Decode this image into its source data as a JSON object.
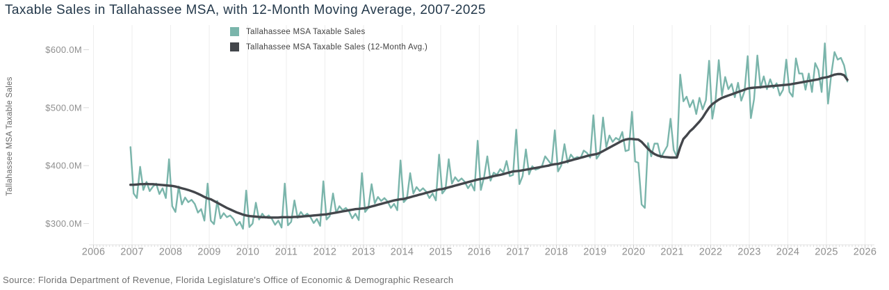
{
  "title": "Taxable Sales in Tallahassee MSA, with 12-Month Moving Average, 2007-2025",
  "source": "Source: Florida Department of Revenue, Florida Legislature's Office of Economic & Demographic Research",
  "colors": {
    "sales": "#7ab5ab",
    "avg": "#43464b",
    "grid": "#eeeeee",
    "axis_line": "#e3e3e3",
    "tick_minor": "#dcdcdc",
    "tick_major": "#c9c9c9",
    "axis_text": "#8e8e8e",
    "title_text": "#24394b"
  },
  "legend": [
    {
      "label": "Tallahassee MSA Taxable Sales",
      "color_key": "sales"
    },
    {
      "label": "Tallahassee MSA Taxable Sales (12-Month Avg.)",
      "color_key": "avg"
    }
  ],
  "y_axis": {
    "title": "Tallahassee MSA Taxable Sales",
    "ticks": [
      {
        "label": "$600.0M",
        "value": 600
      },
      {
        "label": "$500.0M",
        "value": 500
      },
      {
        "label": "$400.0M",
        "value": 400
      },
      {
        "label": "$300.0M",
        "value": 300
      }
    ]
  },
  "x_axis": {
    "years": [
      2006,
      2007,
      2008,
      2009,
      2010,
      2011,
      2012,
      2013,
      2014,
      2015,
      2016,
      2017,
      2018,
      2019,
      2020,
      2021,
      2022,
      2023,
      2024,
      2025,
      2026
    ]
  },
  "chart_data": {
    "type": "line",
    "title": "Taxable Sales in Tallahassee MSA, with 12-Month Moving Average, 2007-2025",
    "xlabel": "",
    "ylabel": "Tallahassee MSA Taxable Sales",
    "y_unit": "USD millions",
    "x_range": [
      2006,
      2026
    ],
    "y_ticks": [
      300,
      400,
      500,
      600
    ],
    "ylim": [
      262,
      642
    ],
    "grid": "vertical-only",
    "legend_position": "top-center",
    "frequency": "monthly",
    "series": [
      {
        "name": "Tallahassee MSA Taxable Sales",
        "color_key": "sales",
        "start_year": 2006,
        "start_month": 12,
        "values": [
          432,
          352,
          344,
          398,
          358,
          372,
          356,
          364,
          369,
          351,
          361,
          344,
          411,
          330,
          320,
          364,
          333,
          345,
          337,
          341,
          334,
          319,
          325,
          305,
          369,
          305,
          299,
          339,
          309,
          318,
          311,
          314,
          308,
          297,
          303,
          291,
          357,
          294,
          300,
          336,
          307,
          317,
          310,
          314,
          308,
          298,
          305,
          293,
          369,
          297,
          303,
          340,
          310,
          320,
          313,
          317,
          311,
          301,
          308,
          296,
          373,
          307,
          313,
          352,
          319,
          330,
          323,
          327,
          321,
          309,
          317,
          306,
          387,
          320,
          327,
          368,
          335,
          346,
          339,
          344,
          338,
          327,
          334,
          323,
          409,
          337,
          343,
          387,
          352,
          363,
          356,
          361,
          355,
          344,
          352,
          340,
          419,
          352,
          359,
          411,
          369,
          380,
          373,
          378,
          372,
          361,
          369,
          357,
          443,
          358,
          380,
          416,
          374,
          388,
          384,
          394,
          388,
          408,
          382,
          384,
          462,
          368,
          382,
          428,
          385,
          399,
          393,
          395,
          399,
          416,
          409,
          401,
          461,
          390,
          400,
          437,
          405,
          419,
          412,
          415,
          413,
          426,
          422,
          414,
          487,
          412,
          420,
          483,
          432,
          452,
          441,
          448,
          444,
          458,
          425,
          427,
          493,
          407,
          405,
          333,
          327,
          439,
          416,
          438,
          438,
          414,
          424,
          434,
          481,
          427,
          415,
          557,
          511,
          519,
          501,
          513,
          489,
          517,
          497,
          513,
          581,
          481,
          512,
          582,
          521,
          553,
          532,
          541,
          518,
          543,
          512,
          528,
          589,
          482,
          515,
          590,
          534,
          554,
          532,
          549,
          534,
          542,
          521,
          531,
          583,
          527,
          519,
          585,
          559,
          559,
          531,
          559,
          527,
          577,
          565,
          527,
          611,
          507,
          557,
          596,
          583,
          586,
          573,
          545
        ]
      },
      {
        "name": "Tallahassee MSA Taxable Sales (12-Month Avg.)",
        "color_key": "avg",
        "start_year": 2006,
        "start_month": 12,
        "values": [
          367,
          367,
          367.5,
          368,
          368,
          368.5,
          368,
          368,
          367.5,
          367,
          366.5,
          366,
          365.5,
          365,
          364,
          362.5,
          361,
          359.5,
          358,
          356,
          354,
          351.5,
          349,
          346,
          343.5,
          342,
          339,
          336,
          333,
          330,
          327,
          324.5,
          322,
          319.5,
          317.5,
          315.5,
          314,
          313,
          312.5,
          312,
          311.5,
          311,
          311,
          310.5,
          310.5,
          310.5,
          310.5,
          311,
          311,
          311,
          311,
          311.5,
          311.5,
          312,
          312.5,
          313,
          313.5,
          314,
          314.5,
          315,
          315.5,
          316,
          317,
          318,
          319,
          320,
          321,
          322,
          323,
          324,
          325,
          325.5,
          326,
          326.5,
          328,
          329.5,
          331,
          332.5,
          334,
          335.5,
          337,
          338.5,
          340,
          341,
          342,
          342.5,
          344,
          345.5,
          347,
          348.5,
          350,
          351.5,
          353,
          354.5,
          356,
          357.5,
          359,
          359.5,
          361,
          362.5,
          364,
          365.5,
          367,
          368.5,
          370,
          371.5,
          373,
          374.5,
          376,
          377,
          378,
          379,
          380.5,
          382,
          383,
          384,
          385.5,
          387,
          388.5,
          390,
          390.5,
          391,
          392,
          393,
          394,
          395,
          396,
          397,
          398,
          399,
          400,
          401.5,
          402.5,
          403,
          404.5,
          406,
          407.5,
          409,
          410.5,
          412,
          413.5,
          415,
          416.5,
          418,
          419,
          420,
          422,
          425,
          428,
          431,
          434,
          437,
          440,
          443,
          445,
          446,
          446,
          445.5,
          445,
          441,
          435,
          429,
          424,
          420,
          417.5,
          416,
          415,
          414.5,
          414,
          414,
          414,
          432,
          446,
          452,
          459,
          464,
          470,
          476,
          483,
          492,
          500,
          506,
          510,
          514,
          517,
          519,
          521,
          523,
          525,
          527,
          529,
          531,
          533,
          534,
          534.5,
          535,
          535.5,
          536,
          536.5,
          537,
          537.5,
          538,
          538.5,
          539,
          539.5,
          540,
          541,
          542,
          543,
          544,
          545,
          546,
          547,
          548,
          549,
          551,
          552,
          553,
          555,
          557,
          558,
          558,
          556,
          548
        ]
      }
    ]
  }
}
